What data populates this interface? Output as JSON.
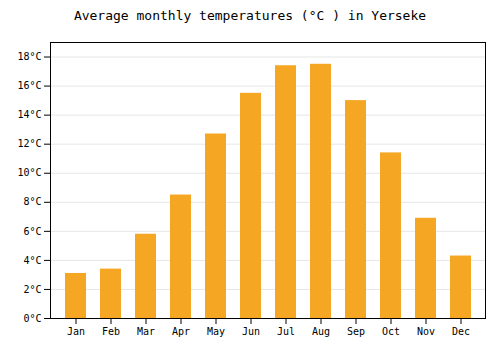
{
  "chart_data": {
    "type": "bar",
    "title": "Average monthly temperatures (°C ) in Yerseke",
    "categories": [
      "Jan",
      "Feb",
      "Mar",
      "Apr",
      "May",
      "Jun",
      "Jul",
      "Aug",
      "Sep",
      "Oct",
      "Nov",
      "Dec"
    ],
    "values": [
      3.1,
      3.4,
      5.8,
      8.5,
      12.7,
      15.5,
      17.4,
      17.5,
      15.0,
      11.4,
      6.9,
      4.3
    ],
    "color": "#F5A623",
    "ylim": [
      0,
      19
    ],
    "yticks": [
      {
        "value": 0,
        "label": "0°C"
      },
      {
        "value": 2,
        "label": "2°C"
      },
      {
        "value": 4,
        "label": "4°C"
      },
      {
        "value": 6,
        "label": "6°C"
      },
      {
        "value": 8,
        "label": "8°C"
      },
      {
        "value": 10,
        "label": "10°C"
      },
      {
        "value": 12,
        "label": "12°C"
      },
      {
        "value": 14,
        "label": "14°C"
      },
      {
        "value": 16,
        "label": "16°C"
      },
      {
        "value": 18,
        "label": "18°C"
      }
    ],
    "grid": true
  }
}
